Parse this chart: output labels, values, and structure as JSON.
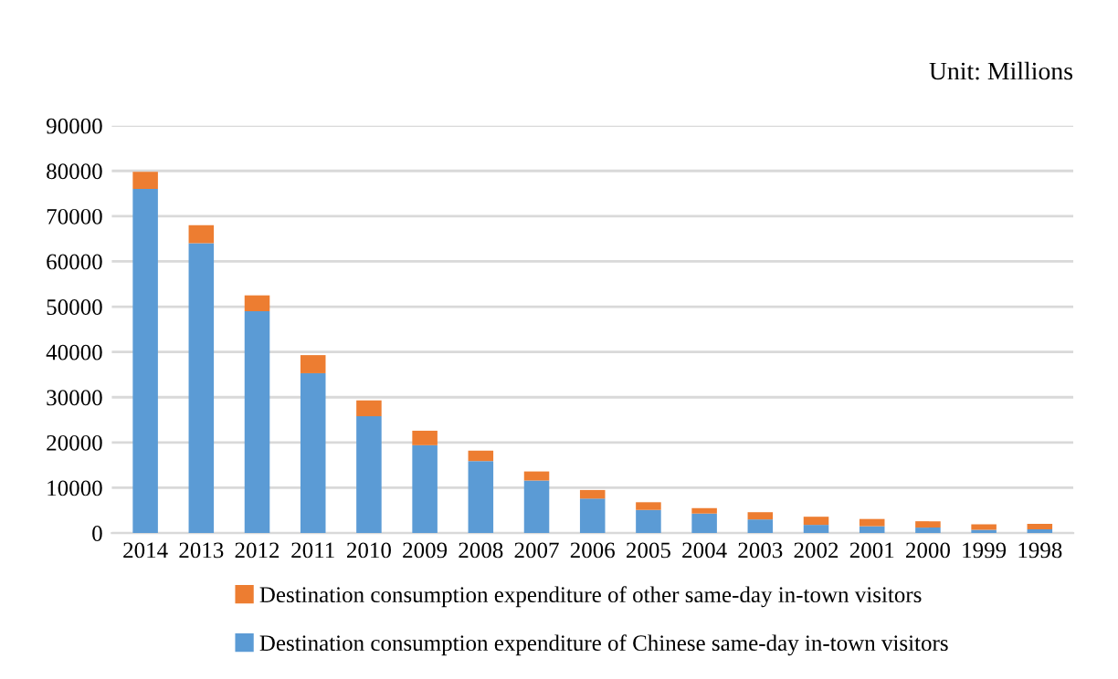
{
  "chart_data": {
    "type": "bar",
    "stacked": true,
    "categories": [
      "2014",
      "2013",
      "2012",
      "2011",
      "2010",
      "2009",
      "2008",
      "2007",
      "2006",
      "2005",
      "2004",
      "2003",
      "2002",
      "2001",
      "2000",
      "1999",
      "1998"
    ],
    "series": [
      {
        "name": "Destination consumption expenditure of Chinese same-day in-town visitors",
        "color": "#5b9bd5",
        "values": [
          76000,
          64000,
          49000,
          35300,
          25800,
          19400,
          15900,
          11600,
          7600,
          5100,
          4300,
          3000,
          1800,
          1500,
          1200,
          700,
          800
        ]
      },
      {
        "name": "Destination consumption expenditure of other same-day in-town visitors",
        "color": "#ed7d31",
        "values": [
          3800,
          4000,
          3500,
          4000,
          3500,
          3200,
          2300,
          2000,
          1900,
          1700,
          1200,
          1600,
          1800,
          1600,
          1400,
          1200,
          1200
        ]
      }
    ],
    "ylim": [
      0,
      90000
    ],
    "yticks": [
      0,
      10000,
      20000,
      30000,
      40000,
      50000,
      60000,
      70000,
      80000,
      90000
    ],
    "grid": "y",
    "legend": "bottom",
    "annotations": [
      "Unit: Millions"
    ]
  }
}
